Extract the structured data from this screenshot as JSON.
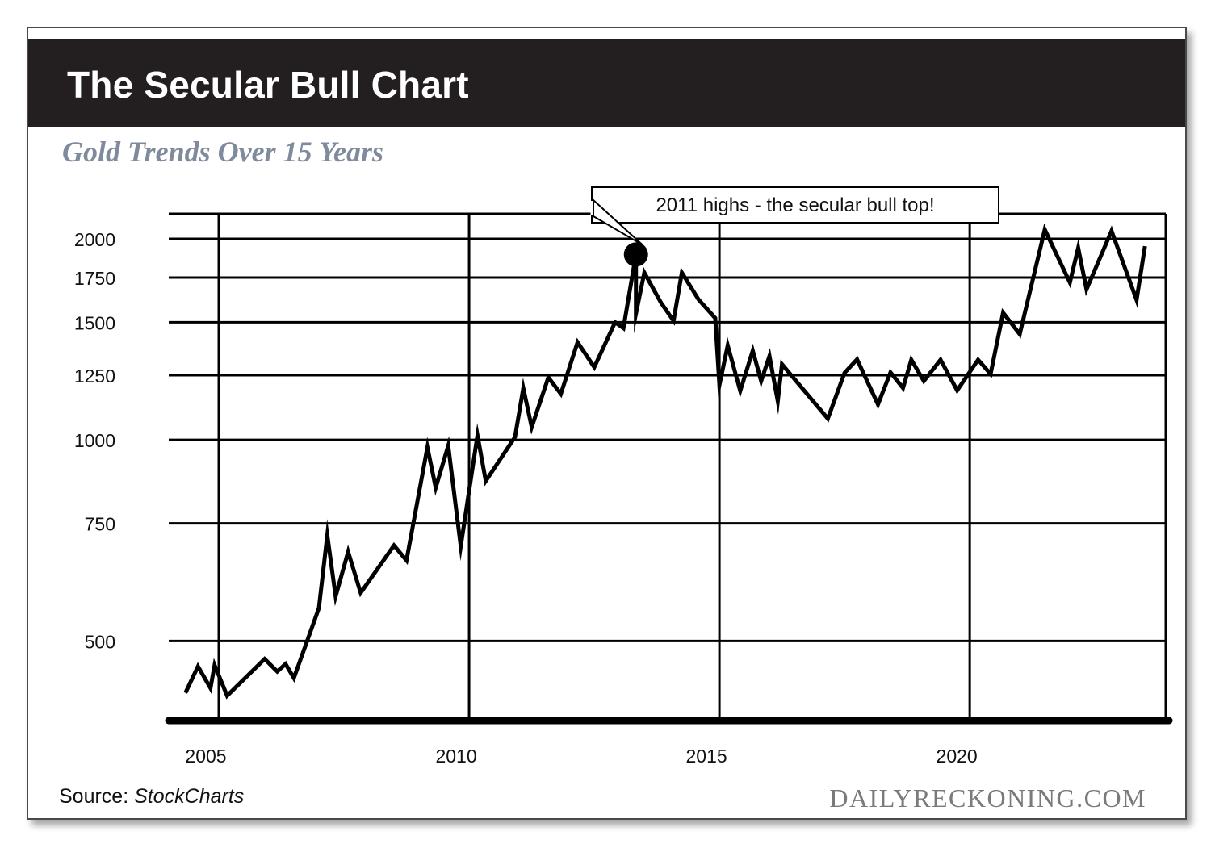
{
  "header": {
    "title": "The Secular Bull Chart",
    "subtitle": "Gold Trends Over 15 Years"
  },
  "footer": {
    "source_label": "Source:",
    "source_name": "StockCharts",
    "brand": "DAILYRECKONING.COM"
  },
  "colors": {
    "header_bg": "#231f20",
    "subtitle": "#7f8a9c",
    "line": "#000000",
    "brand": "#7a7a7a"
  },
  "chart_data": {
    "type": "line",
    "title": "The Secular Bull Chart",
    "subtitle": "Gold Trends Over 15 Years",
    "xlabel": "",
    "ylabel": "",
    "y_scale": "log",
    "x_ticks": [
      "2005",
      "2010",
      "2015",
      "2020"
    ],
    "y_ticks": [
      "500",
      "750",
      "1000",
      "1250",
      "1500",
      "1750",
      "2000"
    ],
    "xlim": [
      "2004-01",
      "2023-12"
    ],
    "ylim": [
      380,
      2180
    ],
    "grid": true,
    "series": [
      {
        "name": "",
        "points": [
          [
            "2004-05",
            418
          ],
          [
            "2004-08",
            458
          ],
          [
            "2004-11",
            425
          ],
          [
            "2004-12",
            460
          ],
          [
            "2005-03",
            414
          ],
          [
            "2005-12",
            470
          ],
          [
            "2006-03",
            450
          ],
          [
            "2006-05",
            462
          ],
          [
            "2006-07",
            440
          ],
          [
            "2007-01",
            560
          ],
          [
            "2007-03",
            720
          ],
          [
            "2007-05",
            583
          ],
          [
            "2007-08",
            680
          ],
          [
            "2007-11",
            590
          ],
          [
            "2008-07",
            695
          ],
          [
            "2008-10",
            660
          ],
          [
            "2009-03",
            975
          ],
          [
            "2009-05",
            848
          ],
          [
            "2009-08",
            980
          ],
          [
            "2009-11",
            693
          ],
          [
            "2010-03",
            1016
          ],
          [
            "2010-05",
            868
          ],
          [
            "2010-12",
            1010
          ],
          [
            "2011-02",
            1195
          ],
          [
            "2011-04",
            1045
          ],
          [
            "2011-08",
            1240
          ],
          [
            "2011-11",
            1172
          ],
          [
            "2012-03",
            1400
          ],
          [
            "2012-07",
            1285
          ],
          [
            "2012-12",
            1500
          ],
          [
            "2013-02",
            1470
          ],
          [
            "2013-05",
            1895
          ],
          [
            "2013-05",
            1545
          ],
          [
            "2013-07",
            1780
          ],
          [
            "2013-11",
            1605
          ],
          [
            "2014-02",
            1508
          ],
          [
            "2014-04",
            1780
          ],
          [
            "2014-08",
            1622
          ],
          [
            "2014-12",
            1522
          ],
          [
            "2015-01",
            1208
          ],
          [
            "2015-03",
            1385
          ],
          [
            "2015-06",
            1184
          ],
          [
            "2015-09",
            1360
          ],
          [
            "2015-11",
            1225
          ],
          [
            "2016-01",
            1335
          ],
          [
            "2016-03",
            1143
          ],
          [
            "2016-04",
            1298
          ],
          [
            "2017-03",
            1076
          ],
          [
            "2017-07",
            1260
          ],
          [
            "2017-10",
            1320
          ],
          [
            "2018-03",
            1130
          ],
          [
            "2018-06",
            1262
          ],
          [
            "2018-09",
            1196
          ],
          [
            "2018-11",
            1318
          ],
          [
            "2019-02",
            1225
          ],
          [
            "2019-06",
            1318
          ],
          [
            "2019-10",
            1186
          ],
          [
            "2020-03",
            1318
          ],
          [
            "2020-06",
            1255
          ],
          [
            "2020-09",
            1550
          ],
          [
            "2021-01",
            1440
          ],
          [
            "2021-07",
            2065
          ],
          [
            "2022-01",
            1720
          ],
          [
            "2022-03",
            1938
          ],
          [
            "2022-05",
            1680
          ],
          [
            "2022-11",
            2055
          ],
          [
            "2023-05",
            1620
          ],
          [
            "2023-07",
            1950
          ]
        ]
      }
    ],
    "annotations": [
      {
        "text": "2011 highs - the secular bull top!",
        "point": [
          "2013-05",
          1895
        ]
      }
    ]
  }
}
